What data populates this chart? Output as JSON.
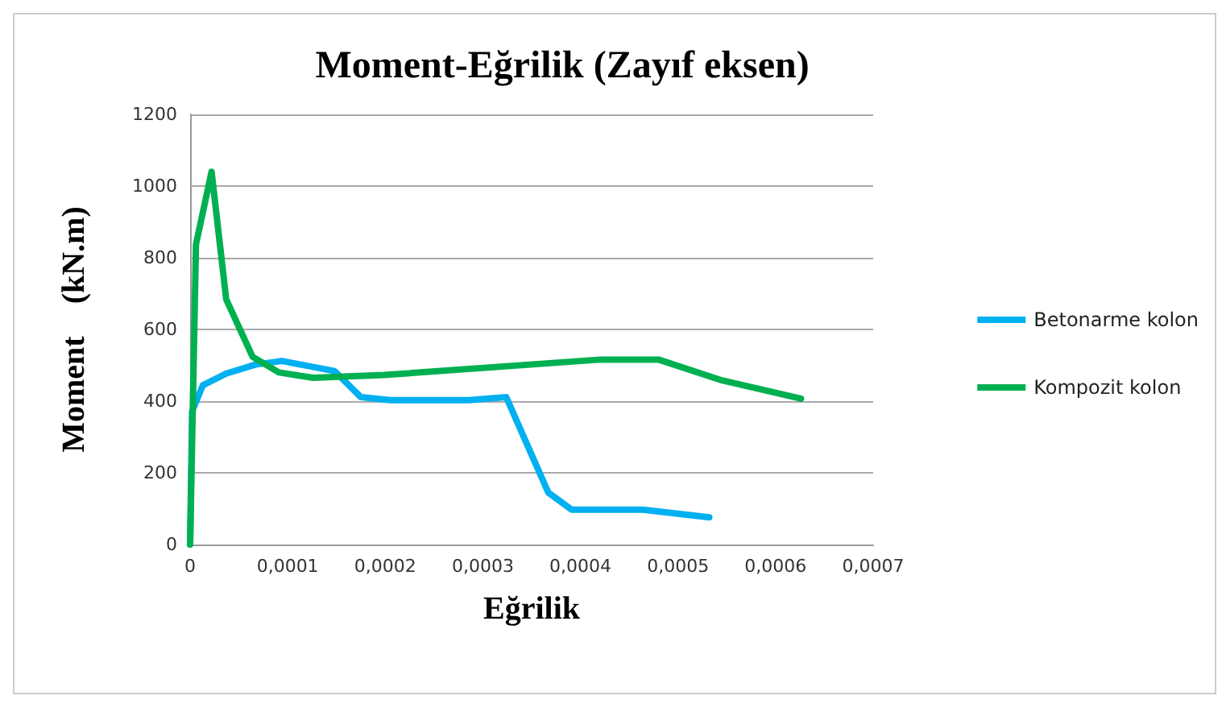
{
  "chart_data": {
    "type": "line",
    "title": "Moment-Eğrilik (Zayıf eksen)",
    "xlabel": "Eğrilik",
    "ylabel": "Moment    (kN.m)",
    "series": [
      {
        "name": "Betonarme kolon",
        "color": "#00b0f0",
        "x": [
          0,
          2e-06,
          1.3e-05,
          3.7e-05,
          6.7e-05,
          9.4e-05,
          0.000148,
          0.000175,
          0.000205,
          0.000286,
          0.000324,
          0.000367,
          0.000391,
          0.000464,
          0.000532
        ],
        "values": [
          0,
          371,
          444,
          477,
          502,
          512,
          484,
          411,
          403,
          403,
          411,
          145,
          97,
          97,
          76
        ]
      },
      {
        "name": "Kompozit kolon",
        "color": "#00b050",
        "x": [
          0,
          6e-06,
          2.2e-05,
          3.7e-05,
          6.4e-05,
          9.1e-05,
          0.000126,
          0.000199,
          0.000421,
          0.00048,
          0.000545,
          0.000626
        ],
        "values": [
          0,
          837,
          1040,
          684,
          524,
          480,
          465,
          473,
          516,
          516,
          458,
          407
        ]
      }
    ],
    "xlim": [
      0,
      0.0007
    ],
    "xticks": [
      0,
      {
        "value": 0.0001,
        "label": "0,0001"
      },
      {
        "value": 0.0002,
        "label": "0,0002"
      },
      {
        "value": 0.0003,
        "label": "0,0003"
      },
      {
        "value": 0.0004,
        "label": "0,0004"
      },
      {
        "value": 0.0005,
        "label": "0,0005"
      },
      {
        "value": 0.0006,
        "label": "0,0006"
      },
      {
        "value": 0.0007,
        "label": "0,0007"
      }
    ],
    "ylim": [
      0,
      1200
    ],
    "yticks": [
      0,
      200,
      400,
      600,
      800,
      1000,
      1200
    ],
    "grid": "y",
    "legend": "right",
    "marker": "none",
    "line_style": "solid"
  }
}
